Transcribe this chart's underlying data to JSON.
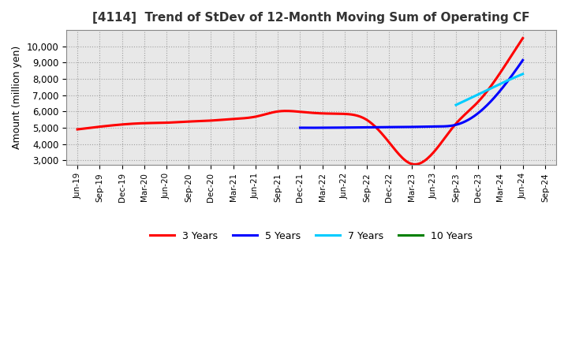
{
  "title": "[4114]  Trend of StDev of 12-Month Moving Sum of Operating CF",
  "ylabel": "Amount (million yen)",
  "background_color": "#ffffff",
  "plot_bg_color": "#e8e8e8",
  "grid_color": "#aaaaaa",
  "ylim": [
    2700,
    11000
  ],
  "yticks": [
    3000,
    4000,
    5000,
    6000,
    7000,
    8000,
    9000,
    10000
  ],
  "series": {
    "3 Years": {
      "color": "#ff0000",
      "data": [
        [
          "Jun-19",
          4900
        ],
        [
          "Sep-19",
          null
        ],
        [
          "Dec-19",
          5200
        ],
        [
          "Mar-20",
          5280
        ],
        [
          "Jun-20",
          5310
        ],
        [
          "Sep-20",
          5380
        ],
        [
          "Dec-20",
          5440
        ],
        [
          "Mar-21",
          5540
        ],
        [
          "Jun-21",
          5680
        ],
        [
          "Sep-21",
          6000
        ],
        [
          "Dec-21",
          5980
        ],
        [
          "Mar-22",
          5880
        ],
        [
          "Jun-22",
          5850
        ],
        [
          "Sep-22",
          5480
        ],
        [
          "Dec-22",
          4100
        ],
        [
          "Mar-23",
          2780
        ],
        [
          "Jun-23",
          3500
        ],
        [
          "Sep-23",
          5250
        ],
        [
          "Dec-23",
          6600
        ],
        [
          "Mar-24",
          8400
        ],
        [
          "Jun-24",
          10500
        ],
        [
          "Sep-24",
          null
        ]
      ]
    },
    "5 Years": {
      "color": "#0000ff",
      "data": [
        [
          "Jun-19",
          null
        ],
        [
          "Sep-19",
          null
        ],
        [
          "Dec-19",
          null
        ],
        [
          "Mar-20",
          null
        ],
        [
          "Jun-20",
          null
        ],
        [
          "Sep-20",
          null
        ],
        [
          "Dec-20",
          null
        ],
        [
          "Mar-21",
          null
        ],
        [
          "Jun-21",
          null
        ],
        [
          "Sep-21",
          null
        ],
        [
          "Dec-21",
          5000
        ],
        [
          "Mar-22",
          5000
        ],
        [
          "Jun-22",
          5010
        ],
        [
          "Sep-22",
          5020
        ],
        [
          "Dec-22",
          5040
        ],
        [
          "Mar-23",
          5050
        ],
        [
          "Jun-23",
          5080
        ],
        [
          "Sep-23",
          5180
        ],
        [
          "Dec-23",
          5900
        ],
        [
          "Mar-24",
          7300
        ],
        [
          "Jun-24",
          9150
        ],
        [
          "Sep-24",
          null
        ]
      ]
    },
    "7 Years": {
      "color": "#00ccff",
      "data": [
        [
          "Jun-19",
          null
        ],
        [
          "Sep-19",
          null
        ],
        [
          "Dec-19",
          null
        ],
        [
          "Mar-20",
          null
        ],
        [
          "Jun-20",
          null
        ],
        [
          "Sep-20",
          null
        ],
        [
          "Dec-20",
          null
        ],
        [
          "Mar-21",
          null
        ],
        [
          "Jun-21",
          null
        ],
        [
          "Sep-21",
          null
        ],
        [
          "Dec-21",
          null
        ],
        [
          "Mar-22",
          null
        ],
        [
          "Jun-22",
          null
        ],
        [
          "Sep-22",
          null
        ],
        [
          "Dec-22",
          null
        ],
        [
          "Mar-23",
          null
        ],
        [
          "Jun-23",
          null
        ],
        [
          "Sep-23",
          6400
        ],
        [
          "Dec-23",
          7050
        ],
        [
          "Mar-24",
          7700
        ],
        [
          "Jun-24",
          8300
        ],
        [
          "Sep-24",
          null
        ]
      ]
    },
    "10 Years": {
      "color": "#008000",
      "data": [
        [
          "Jun-19",
          null
        ],
        [
          "Sep-19",
          null
        ],
        [
          "Dec-19",
          null
        ],
        [
          "Mar-20",
          null
        ],
        [
          "Jun-20",
          null
        ],
        [
          "Sep-20",
          null
        ],
        [
          "Dec-20",
          null
        ],
        [
          "Mar-21",
          null
        ],
        [
          "Jun-21",
          null
        ],
        [
          "Sep-21",
          null
        ],
        [
          "Dec-21",
          null
        ],
        [
          "Mar-22",
          null
        ],
        [
          "Jun-22",
          null
        ],
        [
          "Sep-22",
          null
        ],
        [
          "Dec-22",
          null
        ],
        [
          "Mar-23",
          null
        ],
        [
          "Jun-23",
          null
        ],
        [
          "Sep-23",
          null
        ],
        [
          "Dec-23",
          null
        ],
        [
          "Mar-24",
          null
        ],
        [
          "Jun-24",
          null
        ],
        [
          "Sep-24",
          null
        ]
      ]
    }
  },
  "xtick_labels": [
    "Jun-19",
    "Sep-19",
    "Dec-19",
    "Mar-20",
    "Jun-20",
    "Sep-20",
    "Dec-20",
    "Mar-21",
    "Jun-21",
    "Sep-21",
    "Dec-21",
    "Mar-22",
    "Jun-22",
    "Sep-22",
    "Dec-22",
    "Mar-23",
    "Jun-23",
    "Sep-23",
    "Dec-23",
    "Mar-24",
    "Jun-24",
    "Sep-24"
  ],
  "legend_labels": [
    "3 Years",
    "5 Years",
    "7 Years",
    "10 Years"
  ],
  "legend_colors": [
    "#ff0000",
    "#0000ff",
    "#00ccff",
    "#008000"
  ]
}
